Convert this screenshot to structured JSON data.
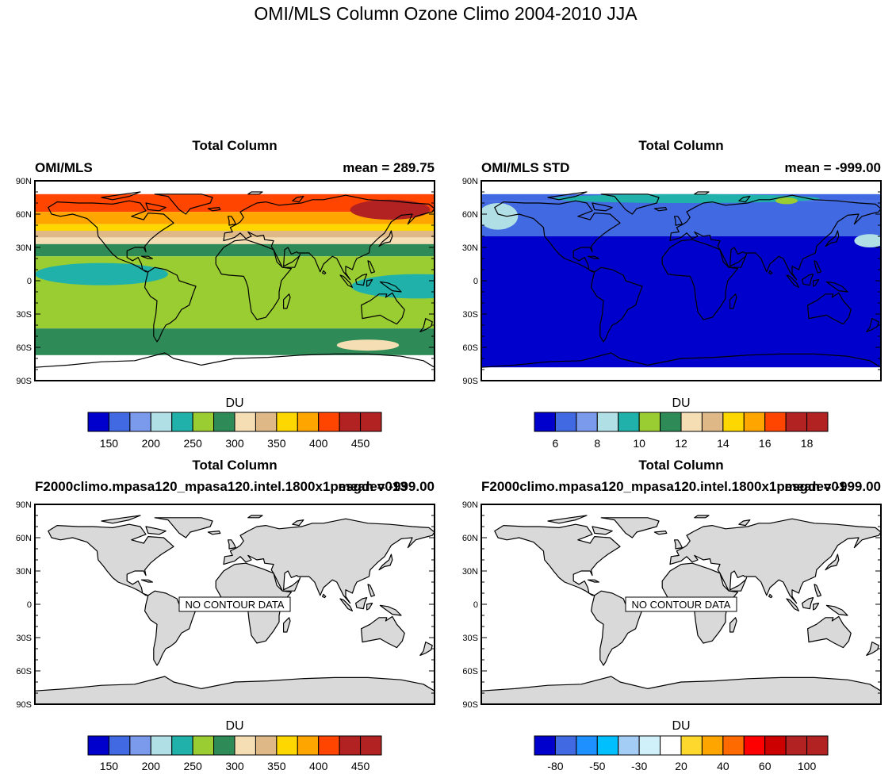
{
  "figure_title": "OMI/MLS Column Ozone Climo 2004-2010 JJA",
  "lat_tick_labels": [
    "90N",
    "60N",
    "30N",
    "0",
    "30S",
    "60S",
    "90S"
  ],
  "panels": [
    {
      "title": "Total Column",
      "left_label": "OMI/MLS",
      "right_label": "mean = 289.75",
      "field": "ozone_total_column",
      "land_fill": "none",
      "zonal_bands": [
        {
          "lat_from": 78,
          "lat_to": 62,
          "level": 11
        },
        {
          "lat_from": 62,
          "lat_to": 51,
          "level": 10
        },
        {
          "lat_from": 51,
          "lat_to": 45,
          "level": 9
        },
        {
          "lat_from": 45,
          "lat_to": 39,
          "level": 8
        },
        {
          "lat_from": 39,
          "lat_to": 33,
          "level": 7
        },
        {
          "lat_from": 33,
          "lat_to": 22,
          "level": 6
        },
        {
          "lat_from": 22,
          "lat_to": 15,
          "level": 5
        },
        {
          "lat_from": 15,
          "lat_to": -20,
          "level": 5
        },
        {
          "lat_from": -20,
          "lat_to": -43,
          "level": 5
        },
        {
          "lat_from": -43,
          "lat_to": -67,
          "level": 6
        }
      ],
      "patches": [
        {
          "lon": -120,
          "lat": 6,
          "rx": 60,
          "ry": 10,
          "level": 4
        },
        {
          "lon": 165,
          "lat": -5,
          "rx": 60,
          "ry": 11,
          "level": 4
        },
        {
          "lon": 140,
          "lat": 64,
          "rx": 36,
          "ry": 9,
          "level": 12
        },
        {
          "lon": 120,
          "lat": -58,
          "rx": 28,
          "ry": 5,
          "level": 7
        }
      ],
      "colorbar": {
        "title": "DU",
        "colors": [
          "#0000cd",
          "#4169e1",
          "#7b9aeb",
          "#b0e0e6",
          "#20b2aa",
          "#9acd32",
          "#2e8b57",
          "#f5deb3",
          "#deb887",
          "#ffd700",
          "#ffa500",
          "#ff4500",
          "#b22222",
          "#b22222"
        ],
        "tick_labels": [
          "150",
          "200",
          "250",
          "300",
          "350",
          "400",
          "450"
        ]
      }
    },
    {
      "title": "Total Column",
      "left_label": "OMI/MLS STD",
      "right_label": "mean = -999.00",
      "field": "ozone_std",
      "land_fill": "none",
      "zonal_bands": [
        {
          "lat_from": 78,
          "lat_to": 72,
          "level": 1
        },
        {
          "lat_from": 72,
          "lat_to": 40,
          "level": 1
        },
        {
          "lat_from": 40,
          "lat_to": -78,
          "level": 0
        }
      ],
      "patches": [
        {
          "lon": 5,
          "lat": 74,
          "rx": 120,
          "ry": 4,
          "level": 4
        },
        {
          "lon": -165,
          "lat": 58,
          "rx": 18,
          "ry": 12,
          "level": 3
        },
        {
          "lon": 170,
          "lat": 36,
          "rx": 14,
          "ry": 6,
          "level": 3
        },
        {
          "lon": 95,
          "lat": 72,
          "rx": 10,
          "ry": 3,
          "level": 5
        }
      ],
      "colorbar": {
        "title": "DU",
        "colors": [
          "#0000cd",
          "#4169e1",
          "#7b9aeb",
          "#b0e0e6",
          "#20b2aa",
          "#9acd32",
          "#2e8b57",
          "#f5deb3",
          "#deb887",
          "#ffd700",
          "#ffa500",
          "#ff4500",
          "#b22222",
          "#b22222"
        ],
        "tick_labels": [
          "6",
          "8",
          "10",
          "12",
          "14",
          "16",
          "18"
        ]
      }
    },
    {
      "title": "Total Column",
      "left_label": "F2000climo.mpasa120_mpasa120.intel.1800x1pesgdev013",
      "right_label": "mean = -999.00",
      "field": "none",
      "land_fill": "#d9d9d9",
      "no_data_text": "NO CONTOUR DATA",
      "colorbar": {
        "title": "DU",
        "colors": [
          "#0000cd",
          "#4169e1",
          "#7b9aeb",
          "#b0e0e6",
          "#20b2aa",
          "#9acd32",
          "#2e8b57",
          "#f5deb3",
          "#deb887",
          "#ffd700",
          "#ffa500",
          "#ff4500",
          "#b22222",
          "#b22222"
        ],
        "tick_labels": [
          "150",
          "200",
          "250",
          "300",
          "350",
          "400",
          "450"
        ]
      }
    },
    {
      "title": "Total Column",
      "left_label": "F2000climo.mpasa120_mpasa120.intel.1800x1pesgdev01",
      "right_label": "mean = -999.00",
      "field": "none",
      "land_fill": "#d9d9d9",
      "no_data_text": "NO CONTOUR DATA",
      "colorbar": {
        "title": "DU",
        "colors": [
          "#0000cd",
          "#4169e1",
          "#1e90ff",
          "#00bfff",
          "#a3cdf5",
          "#d0f0fa",
          "#ffffff",
          "#ffd82e",
          "#ffa500",
          "#ff6a00",
          "#ff0000",
          "#cd0000",
          "#b22222",
          "#b22222"
        ],
        "tick_labels": [
          "-80",
          "-50",
          "-30",
          "20",
          "40",
          "60",
          "100"
        ]
      }
    }
  ]
}
